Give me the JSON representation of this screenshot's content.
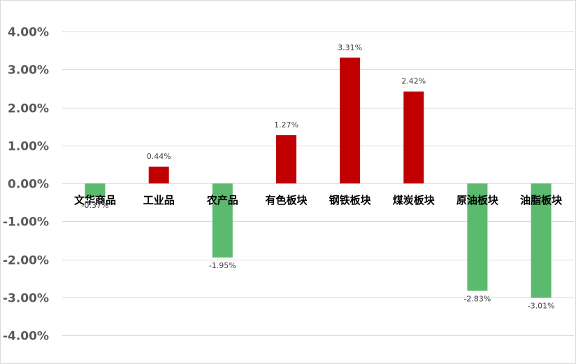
{
  "chart_data": {
    "type": "bar",
    "categories": [
      "文华商品",
      "工业品",
      "农产品",
      "有色板块",
      "钢铁板块",
      "煤炭板块",
      "原油板块",
      "油脂板块"
    ],
    "values": [
      -0.37,
      0.44,
      -1.95,
      1.27,
      3.31,
      2.42,
      -2.83,
      -3.01
    ],
    "data_labels": [
      "-0.37%",
      "0.44%",
      "-1.95%",
      "1.27%",
      "3.31%",
      "2.42%",
      "-2.83%",
      "-3.01%"
    ],
    "y_ticks": [
      {
        "value": 4,
        "label": "4.00%"
      },
      {
        "value": 3,
        "label": "3.00%"
      },
      {
        "value": 2,
        "label": "2.00%"
      },
      {
        "value": 1,
        "label": "1.00%"
      },
      {
        "value": 0,
        "label": "0.00%"
      },
      {
        "value": -1,
        "label": "-1.00%"
      },
      {
        "value": -2,
        "label": "-2.00%"
      },
      {
        "value": -3,
        "label": "-3.00%"
      },
      {
        "value": -4,
        "label": "-4.00%"
      }
    ],
    "ylim": [
      -4,
      4
    ],
    "grid": true,
    "legend": "none",
    "colors": {
      "positive": "#c00000",
      "negative": "#5cba6e",
      "grid": "#d9d9d9",
      "tick_text": "#595959",
      "category_text": "#000000",
      "data_label_text": "#404040"
    }
  }
}
